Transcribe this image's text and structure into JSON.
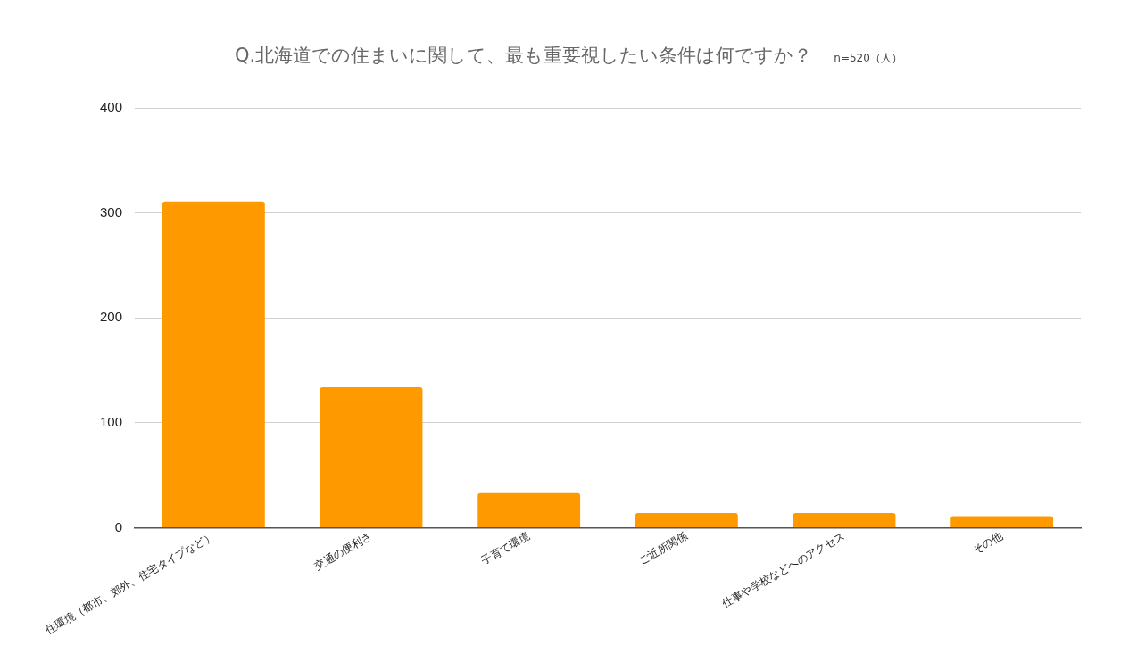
{
  "chart_data": {
    "type": "bar",
    "title": "Q.北海道での住まいに関して、最も重要視したい条件は何ですか？",
    "subtitle": "n=520（人）",
    "categories": [
      "住環境（都市、郊外、住宅タイプなど）",
      "交通の便利さ",
      "子育て環境",
      "ご近所関係",
      "仕事や学校などへのアクセス",
      "その他"
    ],
    "values": [
      311,
      134,
      33,
      14,
      14,
      11
    ],
    "color": "#ff9900",
    "ylim": [
      0,
      400
    ],
    "yticks": [
      0,
      100,
      200,
      300,
      400
    ],
    "grid": "y",
    "legend": false
  }
}
